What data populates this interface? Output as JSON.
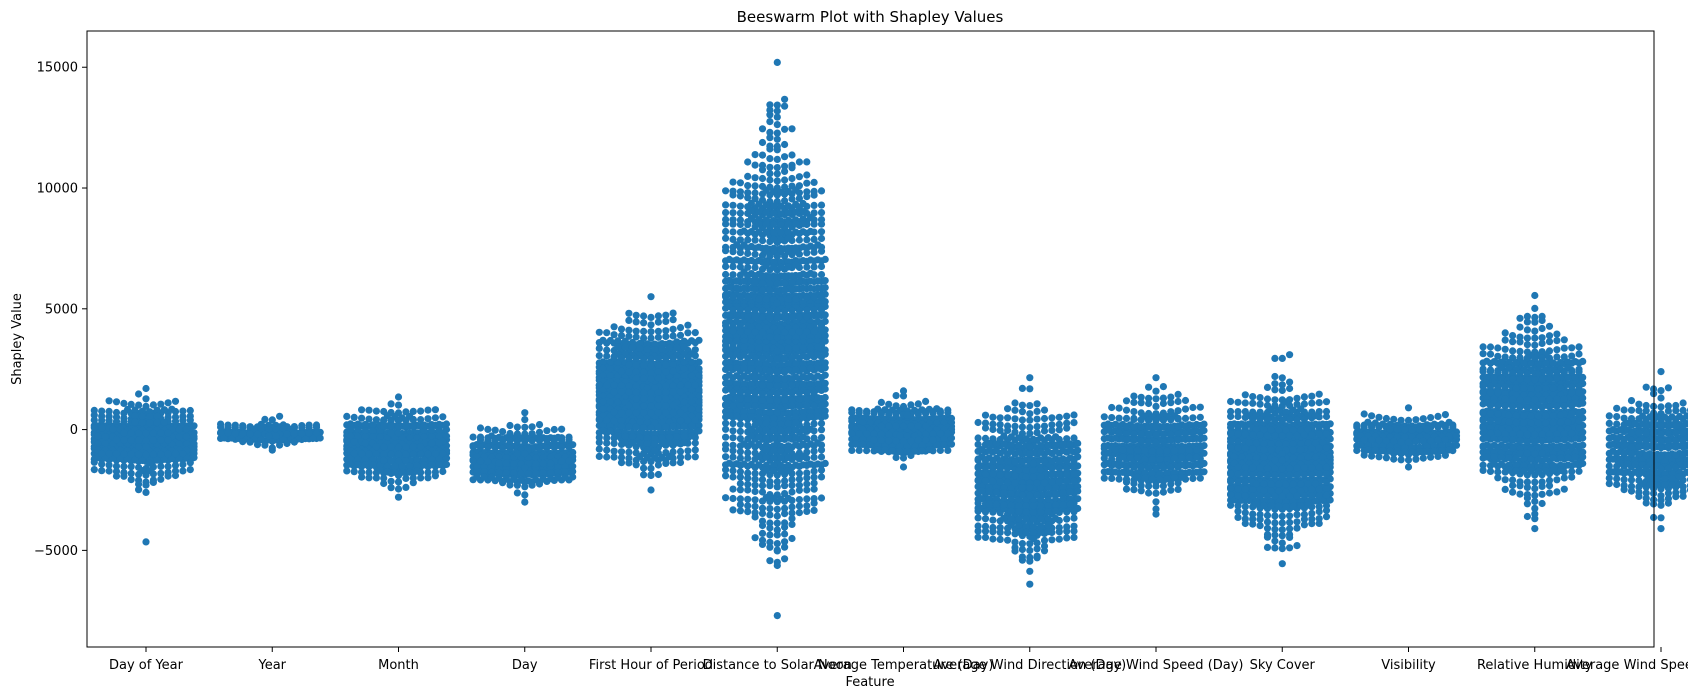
{
  "chart_data": {
    "type": "scatter",
    "subtype": "beeswarm",
    "title": "Beeswarm Plot with Shapley Values",
    "xlabel": "Feature",
    "ylabel": "Shapley Value",
    "ylim": [
      -9000,
      16500
    ],
    "yticks": [
      -5000,
      0,
      5000,
      10000,
      15000
    ],
    "grid": false,
    "legend": "none",
    "point_color": "#1f77b4",
    "categories": [
      "Day of Year",
      "Year",
      "Month",
      "Day",
      "First Hour of Period",
      "Distance to Solar Noon",
      "Average Temperature (Day)",
      "Average Wind Direction (Day)",
      "Average Wind Speed (Day)",
      "Sky Cover",
      "Visibility",
      "Relative Humidity",
      "Average Wind Speed (Period)"
    ],
    "distributions": [
      {
        "feature": "Day of Year",
        "min": -2600,
        "max": 1700,
        "outliers": [
          -4650
        ],
        "n": 420
      },
      {
        "feature": "Year",
        "min": -850,
        "max": 550,
        "outliers": [],
        "n": 120
      },
      {
        "feature": "Month",
        "min": -2800,
        "max": 1350,
        "outliers": [],
        "n": 380
      },
      {
        "feature": "Day",
        "min": -3000,
        "max": 700,
        "outliers": [],
        "n": 300
      },
      {
        "feature": "First Hour of Period",
        "min": -2500,
        "max": 5500,
        "outliers": [],
        "n": 850
      },
      {
        "feature": "Distance to Solar Noon",
        "min": -7700,
        "max": 15200,
        "outliers": [],
        "n": 1400
      },
      {
        "feature": "Average Temperature (Day)",
        "min": -1550,
        "max": 1600,
        "outliers": [],
        "n": 300
      },
      {
        "feature": "Average Wind Direction (Day)",
        "min": -6400,
        "max": 2150,
        "outliers": [],
        "n": 560
      },
      {
        "feature": "Average Wind Speed (Day)",
        "min": -3500,
        "max": 2150,
        "outliers": [],
        "n": 380
      },
      {
        "feature": "Sky Cover",
        "min": -5550,
        "max": 3100,
        "outliers": [],
        "n": 720
      },
      {
        "feature": "Visibility",
        "min": -1550,
        "max": 900,
        "outliers": [],
        "n": 220
      },
      {
        "feature": "Relative Humidity",
        "min": -4100,
        "max": 5550,
        "outliers": [],
        "n": 760
      },
      {
        "feature": "Average Wind Speed (Period)",
        "min": -4100,
        "max": 2400,
        "outliers": [],
        "n": 380
      }
    ]
  }
}
